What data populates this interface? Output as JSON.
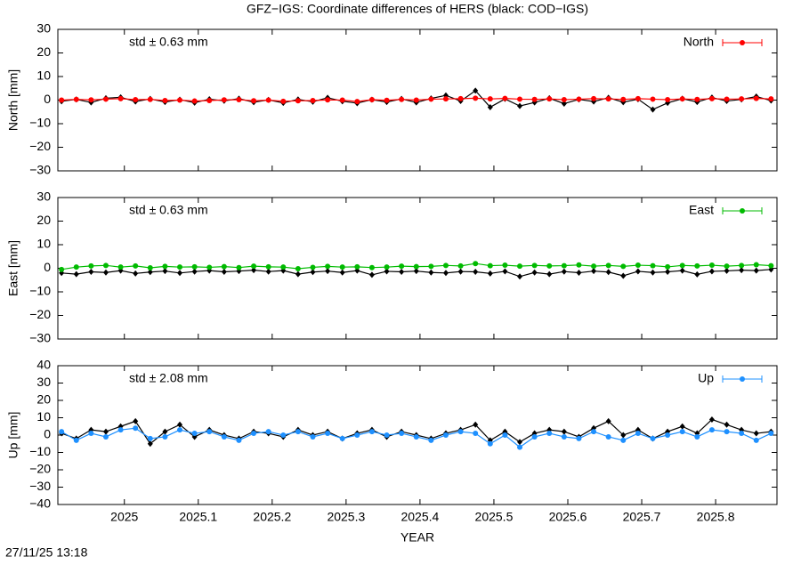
{
  "title": "GFZ−IGS: Coordinate differences of HERS (black: COD−IGS)",
  "timestamp": "27/11/25 13:18",
  "chart_data": [
    {
      "type": "line",
      "ylabel": "North [mm]",
      "annotation": "std ± 0.63 mm",
      "annotation_color": "#ff0000",
      "legend": "top-right",
      "x": [
        2024.915,
        2024.935,
        2024.955,
        2024.975,
        2024.995,
        2025.015,
        2025.035,
        2025.055,
        2025.075,
        2025.095,
        2025.115,
        2025.135,
        2025.155,
        2025.175,
        2025.195,
        2025.215,
        2025.235,
        2025.255,
        2025.275,
        2025.295,
        2025.315,
        2025.335,
        2025.355,
        2025.375,
        2025.395,
        2025.415,
        2025.435,
        2025.455,
        2025.475,
        2025.495,
        2025.515,
        2025.535,
        2025.555,
        2025.575,
        2025.595,
        2025.615,
        2025.635,
        2025.655,
        2025.675,
        2025.695,
        2025.715,
        2025.735,
        2025.755,
        2025.775,
        2025.795,
        2025.815,
        2025.835,
        2025.855,
        2025.875
      ],
      "xlim": [
        2024.91,
        2025.883
      ],
      "xticks": [
        2025,
        2025.1,
        2025.2,
        2025.3,
        2025.4,
        2025.5,
        2025.6,
        2025.7,
        2025.8
      ],
      "ylim": [
        -30,
        30
      ],
      "yticks": [
        {
          "value": -30,
          "label": "−30"
        },
        {
          "value": -20,
          "label": "−20"
        },
        {
          "value": -10,
          "label": "−10"
        },
        0,
        10,
        20,
        30
      ],
      "series": [
        {
          "color": "#000000",
          "marker": "diamond",
          "values": [
            -0.5,
            0.3,
            -1,
            0.8,
            1.2,
            -0.6,
            0.5,
            -0.8,
            0.2,
            -1.1,
            0.4,
            -0.3,
            0.6,
            -0.9,
            0.1,
            -1.2,
            0.3,
            -0.7,
            1,
            -0.5,
            -1.3,
            0.2,
            -0.8,
            0.5,
            -1,
            0.7,
            2,
            -0.4,
            4,
            -3,
            0.5,
            -2.5,
            -1,
            0.8,
            -1.5,
            0.3,
            -0.6,
            1,
            -0.9,
            0.4,
            -4,
            -1.2,
            0.6,
            -0.8,
            1.1,
            -0.4,
            0.3,
            1.5,
            -0.2
          ]
        },
        {
          "name": "North",
          "color": "#ff0000",
          "marker": "circle",
          "values": [
            0,
            0.3,
            0.1,
            0.4,
            0.6,
            0.2,
            0.3,
            -0.2,
            0,
            -0.4,
            -0.2,
            0.1,
            0.2,
            -0.3,
            0,
            -0.5,
            -0.3,
            -0.2,
            0.1,
            0,
            -0.6,
            0.2,
            -0.1,
            0.3,
            0,
            0.4,
            0.5,
            0.6,
            0.8,
            0.5,
            0.7,
            0.4,
            0.3,
            0.5,
            0.2,
            0.4,
            0.6,
            0.5,
            0.3,
            0.6,
            0.4,
            0.2,
            0.5,
            0.3,
            0.6,
            0.4,
            0.5,
            0.7,
            0.5
          ]
        }
      ]
    },
    {
      "type": "line",
      "ylabel": "East [mm]",
      "annotation": "std ± 0.63 mm",
      "annotation_color": "#00bb00",
      "legend": "top-right",
      "x": [
        2024.915,
        2024.935,
        2024.955,
        2024.975,
        2024.995,
        2025.015,
        2025.035,
        2025.055,
        2025.075,
        2025.095,
        2025.115,
        2025.135,
        2025.155,
        2025.175,
        2025.195,
        2025.215,
        2025.235,
        2025.255,
        2025.275,
        2025.295,
        2025.315,
        2025.335,
        2025.355,
        2025.375,
        2025.395,
        2025.415,
        2025.435,
        2025.455,
        2025.475,
        2025.495,
        2025.515,
        2025.535,
        2025.555,
        2025.575,
        2025.595,
        2025.615,
        2025.635,
        2025.655,
        2025.675,
        2025.695,
        2025.715,
        2025.735,
        2025.755,
        2025.775,
        2025.795,
        2025.815,
        2025.835,
        2025.855,
        2025.875
      ],
      "xlim": [
        2024.91,
        2025.883
      ],
      "xticks": [
        2025,
        2025.1,
        2025.2,
        2025.3,
        2025.4,
        2025.5,
        2025.6,
        2025.7,
        2025.8
      ],
      "ylim": [
        -30,
        30
      ],
      "yticks": [
        {
          "value": -30,
          "label": "−30"
        },
        {
          "value": -20,
          "label": "−20"
        },
        {
          "value": -10,
          "label": "−10"
        },
        0,
        10,
        20,
        30
      ],
      "series": [
        {
          "color": "#000000",
          "marker": "diamond",
          "values": [
            -2,
            -2.5,
            -1.5,
            -1.8,
            -1,
            -2.2,
            -1.6,
            -1.2,
            -2,
            -1.4,
            -1,
            -1.5,
            -1.2,
            -0.8,
            -1.4,
            -1,
            -2.5,
            -1.6,
            -1.2,
            -1.8,
            -1,
            -2.8,
            -1.3,
            -1.5,
            -1.2,
            -1.8,
            -2,
            -1.4,
            -1.5,
            -2.2,
            -1.3,
            -3.5,
            -1.8,
            -2.5,
            -1.4,
            -1.9,
            -1.2,
            -1.6,
            -3.2,
            -1.3,
            -1.8,
            -1.5,
            -1,
            -2.6,
            -1.3,
            -1.1,
            -0.8,
            -1,
            -0.5
          ]
        },
        {
          "name": "East",
          "color": "#00bb00",
          "marker": "circle",
          "values": [
            -0.5,
            0.5,
            1,
            1.2,
            0.5,
            1,
            0.2,
            0.8,
            0.5,
            0.6,
            0.4,
            0.7,
            0.3,
            0.9,
            0.6,
            0.5,
            -0.2,
            0.4,
            0.8,
            0.5,
            0.6,
            0.3,
            0.5,
            0.9,
            0.7,
            0.8,
            1.2,
            1,
            2,
            1.1,
            1.3,
            0.9,
            1.2,
            1,
            1.1,
            1.4,
            0.9,
            1.2,
            0.8,
            1.3,
            1.1,
            0.6,
            1.2,
            1,
            1.3,
            0.9,
            1.2,
            1.5,
            1.1
          ]
        }
      ]
    },
    {
      "type": "line",
      "ylabel": "Up [mm]",
      "xlabel": "YEAR",
      "annotation": "std ± 2.08 mm",
      "annotation_color": "#1e90ff",
      "legend": "top-right",
      "x": [
        2024.915,
        2024.935,
        2024.955,
        2024.975,
        2024.995,
        2025.015,
        2025.035,
        2025.055,
        2025.075,
        2025.095,
        2025.115,
        2025.135,
        2025.155,
        2025.175,
        2025.195,
        2025.215,
        2025.235,
        2025.255,
        2025.275,
        2025.295,
        2025.315,
        2025.335,
        2025.355,
        2025.375,
        2025.395,
        2025.415,
        2025.435,
        2025.455,
        2025.475,
        2025.495,
        2025.515,
        2025.535,
        2025.555,
        2025.575,
        2025.595,
        2025.615,
        2025.635,
        2025.655,
        2025.675,
        2025.695,
        2025.715,
        2025.735,
        2025.755,
        2025.775,
        2025.795,
        2025.815,
        2025.835,
        2025.855,
        2025.875
      ],
      "xlim": [
        2024.91,
        2025.883
      ],
      "xticks": [
        2025,
        2025.1,
        2025.2,
        2025.3,
        2025.4,
        2025.5,
        2025.6,
        2025.7,
        2025.8
      ],
      "ylim": [
        -40,
        40
      ],
      "yticks": [
        {
          "value": -40,
          "label": "−40"
        },
        {
          "value": -30,
          "label": "−30"
        },
        {
          "value": -20,
          "label": "−20"
        },
        {
          "value": -10,
          "label": "−10"
        },
        0,
        10,
        20,
        30,
        40
      ],
      "series": [
        {
          "color": "#000000",
          "marker": "diamond",
          "values": [
            1,
            -2,
            3,
            2,
            5,
            8,
            -5,
            2,
            6,
            -1,
            3,
            0,
            -2,
            2,
            1,
            -1,
            3,
            0,
            2,
            -2,
            1,
            3,
            -1,
            2,
            0,
            -2,
            1,
            3,
            6,
            -3,
            2,
            -4,
            1,
            3,
            2,
            -1,
            4,
            8,
            0,
            3,
            -2,
            2,
            5,
            1,
            9,
            6,
            3,
            1,
            2
          ]
        },
        {
          "name": "Up",
          "color": "#1e90ff",
          "marker": "circle",
          "values": [
            2,
            -3,
            1,
            -1,
            3,
            4,
            -2,
            -1,
            3,
            1,
            2,
            -1,
            -3,
            1,
            2,
            0,
            2,
            -1,
            1,
            -2,
            0,
            2,
            0,
            1,
            -1,
            -3,
            0,
            2,
            1,
            -5,
            0,
            -7,
            -1,
            1,
            -1,
            -2,
            2,
            -1,
            -3,
            1,
            -2,
            0,
            2,
            -1,
            3,
            2,
            1,
            -3,
            1
          ]
        }
      ]
    }
  ]
}
